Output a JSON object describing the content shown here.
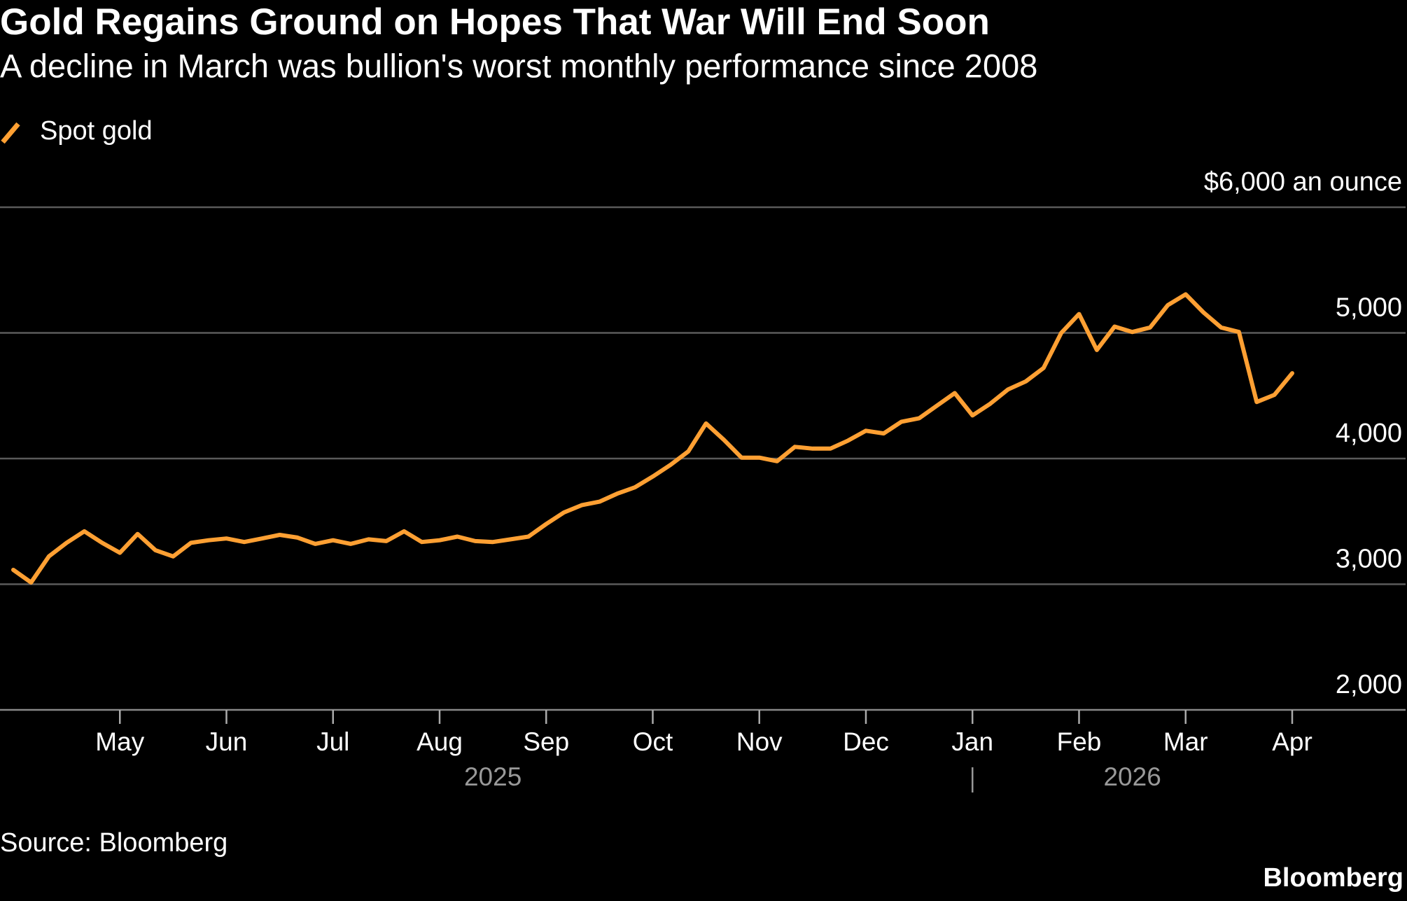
{
  "chart_data": {
    "type": "line",
    "title": "Gold Regains Ground on Hopes That War Will End Soon",
    "subtitle": "A decline in March was bullion's worst monthly performance since 2008",
    "source": "Source: Bloomberg",
    "brand": "Bloomberg",
    "categories": [
      null,
      null,
      null,
      null,
      null,
      null,
      "May",
      null,
      null,
      null,
      null,
      null,
      "Jun",
      null,
      null,
      null,
      null,
      null,
      "Jul",
      null,
      null,
      null,
      null,
      null,
      "Aug",
      null,
      null,
      null,
      null,
      null,
      "Sep",
      null,
      null,
      null,
      null,
      null,
      "Oct",
      null,
      null,
      null,
      null,
      null,
      "Nov",
      null,
      null,
      null,
      null,
      null,
      "Dec",
      null,
      null,
      null,
      null,
      null,
      "Jan",
      null,
      null,
      null,
      null,
      null,
      "Feb",
      null,
      null,
      null,
      null,
      null,
      "Mar",
      null,
      null,
      null,
      null,
      null,
      "Apr"
    ],
    "year_labels": [
      "2025",
      "2026"
    ],
    "series": [
      {
        "name": "Spot gold",
        "color": "#ffa033",
        "values": [
          3114,
          3014,
          3221,
          3329,
          3421,
          3329,
          3250,
          3400,
          3271,
          3221,
          3329,
          3350,
          3364,
          3336,
          3364,
          3393,
          3371,
          3321,
          3350,
          3321,
          3357,
          3343,
          3421,
          3336,
          3350,
          3379,
          3343,
          3336,
          3357,
          3379,
          3479,
          3571,
          3629,
          3657,
          3721,
          3771,
          3857,
          3950,
          4057,
          4279,
          4150,
          4007,
          4007,
          3979,
          4093,
          4079,
          4079,
          4143,
          4221,
          4200,
          4293,
          4321,
          4421,
          4521,
          4343,
          4436,
          4550,
          4614,
          4721,
          5000,
          5150,
          4864,
          5050,
          5007,
          5043,
          5221,
          5307,
          5164,
          5043,
          5007,
          4450,
          4507,
          4679
        ]
      }
    ],
    "ylim": [
      2000,
      6000
    ],
    "yticks": [
      {
        "value": 2000,
        "label": "2,000"
      },
      {
        "value": 3000,
        "label": "3,000"
      },
      {
        "value": 4000,
        "label": "4,000"
      },
      {
        "value": 5000,
        "label": "5,000"
      },
      {
        "value": 6000,
        "label": "$6,000 an ounce"
      }
    ],
    "grid": true
  }
}
